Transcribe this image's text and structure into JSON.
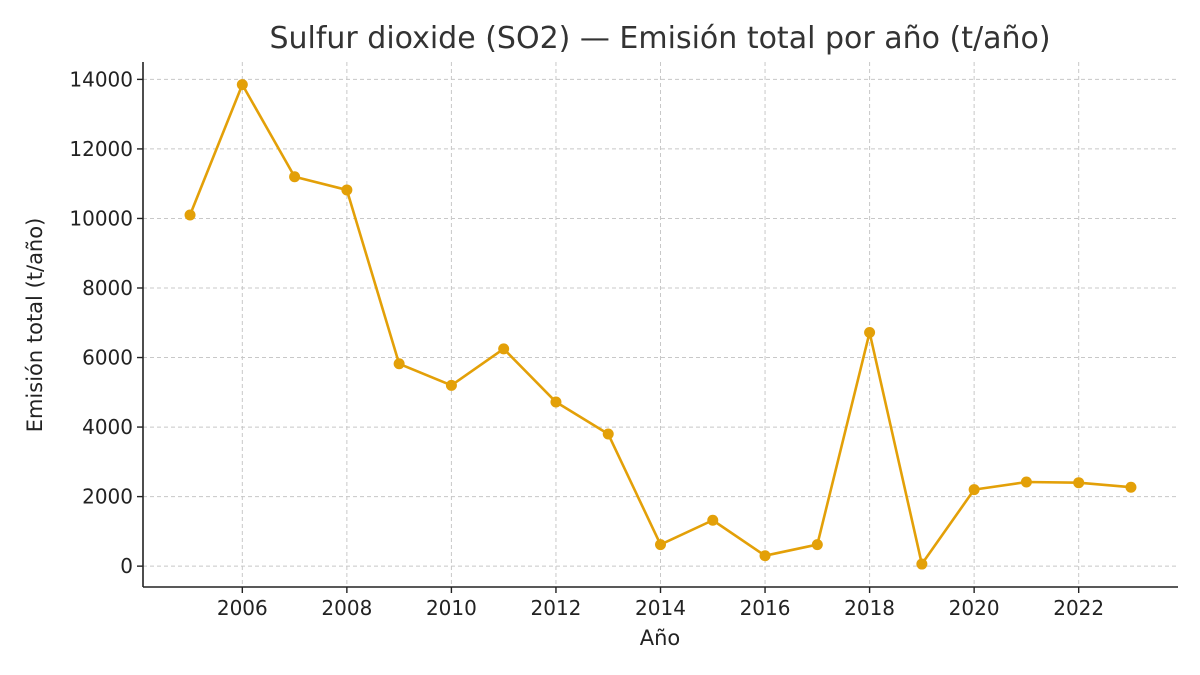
{
  "chart_data": {
    "type": "line",
    "title": "Sulfur dioxide (SO2) — Emisión total por año (t/año)",
    "xlabel": "Año",
    "ylabel": "Emisión total (t/año)",
    "x": [
      2005,
      2006,
      2007,
      2008,
      2009,
      2010,
      2011,
      2012,
      2013,
      2014,
      2015,
      2016,
      2017,
      2018,
      2019,
      2020,
      2021,
      2022,
      2023
    ],
    "series": [
      {
        "values": [
          10100,
          13850,
          11200,
          10820,
          5820,
          5200,
          6250,
          4720,
          3800,
          620,
          1320,
          300,
          620,
          6720,
          60,
          2200,
          2420,
          2400,
          2270
        ]
      }
    ],
    "xlim": [
      2004.1,
      2023.9
    ],
    "ylim": [
      -600,
      14500
    ],
    "xticks": [
      2006,
      2008,
      2010,
      2012,
      2014,
      2016,
      2018,
      2020,
      2022
    ],
    "yticks": [
      0,
      2000,
      4000,
      6000,
      8000,
      10000,
      12000,
      14000
    ],
    "grid": true,
    "line_color": "#E3A008"
  }
}
